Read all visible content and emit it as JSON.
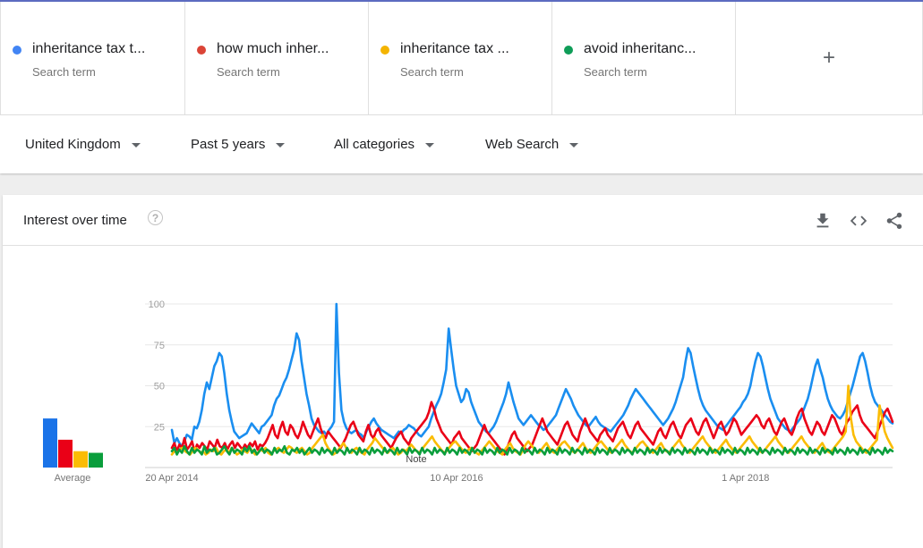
{
  "compare": {
    "terms": [
      {
        "name": "inheritance tax t...",
        "sub": "Search term",
        "color": "#4285f4"
      },
      {
        "name": "how much inher...",
        "sub": "Search term",
        "color": "#db4437"
      },
      {
        "name": "inheritance tax ...",
        "sub": "Search term",
        "color": "#f4b400"
      },
      {
        "name": "avoid inheritanc...",
        "sub": "Search term",
        "color": "#0f9d58"
      }
    ],
    "add_symbol": "+"
  },
  "filters": {
    "region": "United Kingdom",
    "time": "Past 5 years",
    "category": "All categories",
    "search_type": "Web Search"
  },
  "card": {
    "title": "Interest over time",
    "help_symbol": "?"
  },
  "chart_data": {
    "type": "line",
    "ylim": [
      0,
      100
    ],
    "yticks": [
      25,
      50,
      75,
      100
    ],
    "ytick_labels": [
      "25",
      "50",
      "75",
      "100"
    ],
    "xtick_labels": [
      "20 Apr 2014",
      "10 Apr 2016",
      "1 Apr 2018"
    ],
    "average_label": "Average",
    "annotation": "Note",
    "grid": true,
    "averages": [
      {
        "name": "inheritance tax t...",
        "value": 30,
        "color": "#1a73e8"
      },
      {
        "name": "how much inher...",
        "value": 17,
        "color": "#ea0017"
      },
      {
        "name": "inheritance tax ...",
        "value": 10,
        "color": "#fbbc04"
      },
      {
        "name": "avoid inheritanc...",
        "value": 9,
        "color": "#0a9e3c"
      }
    ],
    "series": [
      {
        "name": "inheritance tax t...",
        "color": "#1a8ef0",
        "values": [
          23,
          15,
          18,
          15,
          13,
          16,
          20,
          19,
          17,
          25,
          24,
          28,
          35,
          45,
          52,
          48,
          55,
          62,
          65,
          70,
          68,
          58,
          45,
          35,
          28,
          22,
          20,
          18,
          19,
          20,
          21,
          24,
          27,
          25,
          23,
          21,
          25,
          26,
          28,
          30,
          32,
          38,
          42,
          44,
          48,
          52,
          55,
          60,
          66,
          72,
          82,
          78,
          65,
          55,
          45,
          38,
          30,
          26,
          24,
          22,
          21,
          22,
          20,
          23,
          25,
          28,
          100,
          58,
          35,
          28,
          24,
          22,
          21,
          22,
          23,
          21,
          20,
          18,
          22,
          25,
          28,
          30,
          27,
          25,
          23,
          22,
          21,
          20,
          19,
          18,
          20,
          22,
          21,
          23,
          24,
          26,
          25,
          24,
          22,
          20,
          19,
          21,
          23,
          25,
          30,
          34,
          38,
          41,
          45,
          52,
          60,
          85,
          72,
          60,
          50,
          45,
          40,
          42,
          48,
          46,
          40,
          36,
          32,
          28,
          26,
          24,
          22,
          21,
          23,
          25,
          28,
          32,
          36,
          40,
          45,
          52,
          46,
          40,
          35,
          30,
          28,
          26,
          28,
          30,
          32,
          30,
          28,
          26,
          25,
          23,
          24,
          26,
          28,
          30,
          32,
          36,
          40,
          44,
          48,
          45,
          42,
          38,
          35,
          32,
          30,
          28,
          26,
          25,
          27,
          29,
          31,
          28,
          26,
          25,
          24,
          23,
          22,
          24,
          26,
          28,
          30,
          32,
          35,
          38,
          42,
          45,
          48,
          46,
          44,
          42,
          40,
          38,
          36,
          34,
          32,
          30,
          28,
          26,
          28,
          30,
          33,
          36,
          40,
          45,
          50,
          55,
          65,
          73,
          70,
          62,
          55,
          48,
          42,
          38,
          35,
          33,
          31,
          29,
          27,
          25,
          24,
          23,
          25,
          27,
          29,
          31,
          33,
          35,
          37,
          40,
          42,
          45,
          50,
          58,
          65,
          70,
          68,
          62,
          55,
          48,
          42,
          38,
          34,
          30,
          28,
          26,
          24,
          23,
          22,
          24,
          26,
          28,
          30,
          34,
          38,
          42,
          48,
          55,
          62,
          66,
          60,
          55,
          48,
          42,
          38,
          35,
          33,
          31,
          30,
          32,
          35,
          40,
          45,
          50,
          56,
          62,
          68,
          70,
          65,
          58,
          50,
          44,
          40,
          38,
          36,
          34,
          32,
          30,
          28,
          27
        ]
      },
      {
        "name": "how much inher...",
        "color": "#ea0017",
        "values": [
          12,
          15,
          10,
          14,
          12,
          18,
          11,
          13,
          16,
          10,
          14,
          12,
          15,
          13,
          11,
          16,
          14,
          12,
          17,
          13,
          12,
          15,
          11,
          14,
          16,
          12,
          15,
          13,
          11,
          14,
          12,
          15,
          13,
          16,
          11,
          14,
          13,
          15,
          18,
          22,
          26,
          20,
          18,
          24,
          28,
          22,
          20,
          26,
          24,
          20,
          18,
          22,
          28,
          24,
          20,
          18,
          22,
          26,
          30,
          24,
          20,
          18,
          22,
          20,
          18,
          16,
          14,
          12,
          15,
          18,
          22,
          26,
          28,
          24,
          20,
          18,
          16,
          22,
          26,
          20,
          18,
          22,
          24,
          20,
          18,
          16,
          14,
          12,
          15,
          18,
          20,
          22,
          18,
          16,
          14,
          18,
          20,
          22,
          24,
          26,
          28,
          30,
          34,
          40,
          36,
          30,
          26,
          22,
          20,
          18,
          16,
          14,
          18,
          20,
          22,
          18,
          16,
          14,
          12,
          10,
          12,
          14,
          18,
          22,
          26,
          22,
          20,
          18,
          16,
          14,
          12,
          10,
          8,
          12,
          16,
          20,
          22,
          18,
          16,
          14,
          12,
          10,
          12,
          14,
          18,
          22,
          26,
          30,
          26,
          22,
          20,
          18,
          16,
          14,
          18,
          22,
          26,
          28,
          24,
          20,
          18,
          16,
          22,
          26,
          30,
          26,
          22,
          20,
          18,
          16,
          20,
          22,
          24,
          20,
          18,
          16,
          20,
          24,
          26,
          28,
          24,
          20,
          18,
          22,
          26,
          28,
          24,
          22,
          20,
          18,
          16,
          14,
          18,
          22,
          24,
          20,
          18,
          22,
          26,
          28,
          24,
          20,
          18,
          22,
          26,
          28,
          30,
          26,
          22,
          20,
          24,
          28,
          30,
          26,
          22,
          18,
          22,
          26,
          28,
          24,
          20,
          22,
          26,
          30,
          28,
          24,
          20,
          22,
          24,
          26,
          28,
          30,
          32,
          30,
          26,
          24,
          28,
          30,
          26,
          22,
          20,
          24,
          28,
          30,
          26,
          22,
          20,
          24,
          30,
          34,
          36,
          30,
          26,
          22,
          20,
          24,
          28,
          26,
          22,
          20,
          24,
          28,
          32,
          30,
          26,
          22,
          20,
          24,
          28,
          30,
          34,
          36,
          38,
          32,
          28,
          26,
          24,
          22,
          20,
          18,
          22,
          26,
          30,
          34,
          36,
          32,
          28
        ]
      },
      {
        "name": "inheritance tax ...",
        "color": "#fbbc04",
        "values": [
          8,
          10,
          9,
          11,
          12,
          10,
          9,
          8,
          10,
          12,
          11,
          9,
          10,
          8,
          9,
          11,
          10,
          12,
          9,
          8,
          10,
          11,
          9,
          12,
          10,
          8,
          9,
          11,
          10,
          9,
          12,
          10,
          8,
          9,
          11,
          10,
          12,
          9,
          8,
          10,
          11,
          12,
          10,
          9,
          11,
          13,
          12,
          10,
          9,
          11,
          12,
          10,
          8,
          9,
          12,
          14,
          16,
          18,
          20,
          15,
          12,
          10,
          8,
          9,
          11,
          13,
          15,
          12,
          10,
          9,
          11,
          12,
          10,
          9,
          8,
          11,
          13,
          15,
          18,
          16,
          14,
          12,
          10,
          9,
          11,
          12,
          10,
          8,
          9,
          11,
          10,
          12,
          14,
          12,
          10,
          9,
          11,
          13,
          15,
          17,
          19,
          16,
          14,
          12,
          10,
          9,
          11,
          13,
          15,
          16,
          14,
          12,
          10,
          9,
          11,
          12,
          10,
          9,
          8,
          10,
          12,
          14,
          16,
          14,
          12,
          10,
          9,
          8,
          11,
          13,
          15,
          12,
          10,
          9,
          8,
          11,
          14,
          16,
          14,
          12,
          10,
          9,
          11,
          13,
          15,
          12,
          10,
          9,
          11,
          13,
          15,
          16,
          14,
          12,
          10,
          9,
          11,
          13,
          15,
          12,
          10,
          9,
          11,
          13,
          15,
          16,
          14,
          12,
          10,
          9,
          11,
          13,
          15,
          17,
          14,
          12,
          10,
          9,
          11,
          13,
          15,
          16,
          14,
          12,
          10,
          9,
          11,
          13,
          15,
          12,
          10,
          9,
          11,
          13,
          15,
          17,
          14,
          12,
          10,
          9,
          11,
          13,
          15,
          17,
          19,
          16,
          14,
          12,
          10,
          9,
          11,
          13,
          15,
          17,
          14,
          12,
          10,
          9,
          11,
          13,
          15,
          17,
          19,
          16,
          14,
          12,
          10,
          9,
          11,
          13,
          15,
          17,
          19,
          16,
          14,
          12,
          10,
          9,
          11,
          13,
          15,
          17,
          19,
          16,
          14,
          12,
          10,
          9,
          11,
          13,
          15,
          12,
          10,
          9,
          11,
          13,
          15,
          17,
          19,
          22,
          50,
          30,
          20,
          16,
          14,
          12,
          10,
          9,
          11,
          13,
          15,
          17,
          38,
          30,
          22,
          18,
          15,
          12
        ]
      },
      {
        "name": "avoid inheritanc...",
        "color": "#0a9e3c",
        "values": [
          10,
          12,
          8,
          11,
          9,
          13,
          10,
          8,
          12,
          9,
          11,
          10,
          8,
          13,
          9,
          11,
          10,
          12,
          8,
          9,
          11,
          13,
          10,
          8,
          12,
          9,
          11,
          10,
          8,
          12,
          10,
          13,
          9,
          11,
          8,
          10,
          12,
          9,
          11,
          10,
          8,
          12,
          9,
          11,
          10,
          13,
          9,
          8,
          11,
          10,
          12,
          9,
          11,
          8,
          10,
          12,
          9,
          11,
          10,
          8,
          12,
          9,
          11,
          10,
          8,
          12,
          9,
          11,
          10,
          8,
          12,
          9,
          11,
          10,
          8,
          12,
          9,
          11,
          10,
          8,
          12,
          9,
          11,
          10,
          8,
          12,
          9,
          11,
          10,
          8,
          12,
          9,
          11,
          10,
          8,
          12,
          9,
          11,
          10,
          8,
          12,
          9,
          11,
          10,
          8,
          12,
          9,
          11,
          10,
          8,
          12,
          9,
          11,
          10,
          8,
          12,
          9,
          11,
          10,
          8,
          12,
          9,
          11,
          10,
          8,
          12,
          9,
          11,
          10,
          8,
          12,
          9,
          11,
          10,
          8,
          12,
          9,
          11,
          10,
          8,
          12,
          9,
          11,
          10,
          8,
          12,
          9,
          11,
          10,
          8,
          12,
          9,
          11,
          10,
          8,
          12,
          9,
          11,
          10,
          8,
          12,
          9,
          11,
          10,
          8,
          12,
          9,
          11,
          10,
          8,
          12,
          9,
          11,
          10,
          8,
          12,
          9,
          11,
          10,
          8,
          12,
          9,
          11,
          10,
          8,
          12,
          9,
          11,
          10,
          8,
          12,
          9,
          11,
          10,
          8,
          12,
          9,
          11,
          10,
          8,
          12,
          9,
          11,
          10,
          8,
          12,
          9,
          11,
          10,
          8,
          12,
          9,
          11,
          10,
          8,
          12,
          9,
          11,
          10,
          8,
          12,
          9,
          11,
          10,
          8,
          12,
          9,
          11,
          10,
          8,
          12,
          9,
          11,
          10,
          8,
          12,
          9,
          11,
          10,
          8,
          12,
          9,
          11,
          10,
          8,
          12,
          9,
          11,
          10,
          8,
          12,
          9,
          11,
          10,
          8,
          12,
          9,
          11,
          10,
          8,
          12,
          9,
          11,
          10,
          8,
          12,
          9,
          11,
          10,
          8,
          12,
          9,
          11,
          10,
          8,
          12,
          9,
          11,
          10,
          8,
          12,
          9,
          11,
          10,
          8,
          12,
          9,
          11,
          10
        ]
      }
    ]
  }
}
